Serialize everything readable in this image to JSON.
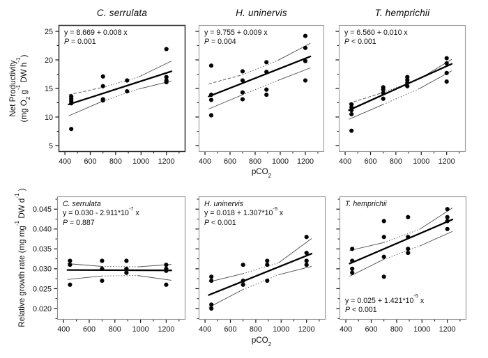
{
  "figure": {
    "y_axis_top_line1": "Net Productivity",
    "y_axis_top_line2": "(mg O~2~ g^-1^ DW h^-1^)",
    "y_axis_bottom": "Relative growth rate (mg mg^-1^  DW d^-1^ )",
    "x_axis_label": "pCO~2~"
  },
  "chart_data": [
    {
      "type": "scatter",
      "title": "C. serrulata",
      "species": "C. serrulata",
      "row": "net-productivity",
      "xlim": [
        350,
        1350
      ],
      "ylim": [
        3.9,
        26.1
      ],
      "x_tick_values": [
        400,
        600,
        800,
        1000,
        1200
      ],
      "x_tick_labels": [
        "400",
        "600",
        "800",
        "1000",
        "1200"
      ],
      "x_minor_ticks": [
        500,
        700,
        900,
        1100,
        1300
      ],
      "y_tick_values": [
        5,
        10,
        15,
        20,
        25
      ],
      "y_tick_labels": [
        "5",
        "10",
        "15",
        "20",
        "25"
      ],
      "y_minor_ticks": [
        7.5,
        12.5,
        17.5,
        22.5
      ],
      "points": [
        [
          450,
          13.6
        ],
        [
          450,
          13.2
        ],
        [
          450,
          12.8
        ],
        [
          450,
          12.4
        ],
        [
          450,
          7.9
        ],
        [
          700,
          17.1
        ],
        [
          700,
          15.4
        ],
        [
          700,
          13.1
        ],
        [
          700,
          12.9
        ],
        [
          890,
          16.4
        ],
        [
          890,
          14.5
        ],
        [
          1200,
          21.9
        ],
        [
          1200,
          17.0
        ],
        [
          1200,
          16.4
        ],
        [
          1200,
          16.1
        ]
      ],
      "fit_line": [
        [
          430,
          12.2
        ],
        [
          1240,
          18.0
        ]
      ],
      "ci_upper": [
        [
          430,
          13.9
        ],
        [
          700,
          15.2
        ],
        [
          980,
          17.0
        ],
        [
          1240,
          19.8
        ]
      ],
      "ci_lower": [
        [
          430,
          10.2
        ],
        [
          700,
          12.8
        ],
        [
          980,
          14.9
        ],
        [
          1240,
          16.3
        ]
      ],
      "ci_upper_styles": [
        "dashed",
        "dotted",
        "solid"
      ],
      "ci_lower_styles": [
        "solid",
        "dotted",
        "solid"
      ],
      "annotations": [
        {
          "pos": "top-left",
          "lines": [
            {
              "type": "equation",
              "text": "y = 8.669 + 0.008 x"
            },
            {
              "type": "pvalue",
              "text": "P = 0.001"
            }
          ]
        }
      ]
    },
    {
      "type": "scatter",
      "title": "H. uninervis",
      "species": "H. uninervis",
      "row": "net-productivity",
      "xlim": [
        350,
        1350
      ],
      "ylim": [
        3.9,
        26.1
      ],
      "x_tick_values": [
        400,
        600,
        800,
        1000,
        1200
      ],
      "x_tick_labels": [
        "400",
        "600",
        "800",
        "1000",
        "1200"
      ],
      "x_minor_ticks": [
        500,
        700,
        900,
        1100,
        1300
      ],
      "y_tick_values": [
        5,
        10,
        15,
        20,
        25
      ],
      "y_tick_labels": null,
      "y_minor_ticks": [
        7.5,
        12.5,
        17.5,
        22.5
      ],
      "points": [
        [
          450,
          19.0
        ],
        [
          450,
          13.9
        ],
        [
          450,
          13.0
        ],
        [
          450,
          10.3
        ],
        [
          700,
          18.0
        ],
        [
          700,
          16.4
        ],
        [
          700,
          14.3
        ],
        [
          700,
          13.1
        ],
        [
          890,
          19.6
        ],
        [
          890,
          17.9
        ],
        [
          890,
          14.8
        ],
        [
          890,
          13.9
        ],
        [
          1200,
          24.2
        ],
        [
          1200,
          22.1
        ],
        [
          1200,
          19.8
        ],
        [
          1200,
          16.4
        ]
      ],
      "fit_line": [
        [
          430,
          13.6
        ],
        [
          1240,
          20.6
        ]
      ],
      "ci_upper": [
        [
          430,
          15.8
        ],
        [
          700,
          17.4
        ],
        [
          980,
          19.9
        ],
        [
          1240,
          22.9
        ]
      ],
      "ci_lower": [
        [
          430,
          11.4
        ],
        [
          700,
          13.9
        ],
        [
          980,
          16.4
        ],
        [
          1240,
          18.6
        ]
      ],
      "ci_upper_styles": [
        "dashed",
        "dotted",
        "solid"
      ],
      "ci_lower_styles": [
        "solid",
        "dotted",
        "solid"
      ],
      "annotations": [
        {
          "pos": "top-left",
          "lines": [
            {
              "type": "equation",
              "text": "y = 9.755 + 0.009 x"
            },
            {
              "type": "pvalue",
              "text": "P = 0.004"
            }
          ]
        }
      ]
    },
    {
      "type": "scatter",
      "title": "T. hemprichii",
      "species": "T. hemprichii",
      "row": "net-productivity",
      "xlim": [
        350,
        1350
      ],
      "ylim": [
        3.9,
        26.1
      ],
      "x_tick_values": [
        400,
        600,
        800,
        1000,
        1200
      ],
      "x_tick_labels": [
        "400",
        "600",
        "800",
        "1000",
        "1200"
      ],
      "x_minor_ticks": [
        500,
        700,
        900,
        1100,
        1300
      ],
      "y_tick_values": [
        5,
        10,
        15,
        20,
        25
      ],
      "y_tick_labels": null,
      "y_minor_ticks": [
        7.5,
        12.5,
        17.5,
        22.5
      ],
      "points": [
        [
          450,
          12.2
        ],
        [
          450,
          11.7
        ],
        [
          450,
          11.2
        ],
        [
          450,
          10.5
        ],
        [
          450,
          7.6
        ],
        [
          700,
          15.2
        ],
        [
          700,
          14.8
        ],
        [
          700,
          14.2
        ],
        [
          700,
          13.2
        ],
        [
          890,
          17.0
        ],
        [
          890,
          16.5
        ],
        [
          890,
          16.0
        ],
        [
          890,
          15.4
        ],
        [
          1200,
          20.3
        ],
        [
          1200,
          19.4
        ],
        [
          1200,
          17.7
        ],
        [
          1200,
          16.2
        ]
      ],
      "fit_line": [
        [
          430,
          11.2
        ],
        [
          1240,
          19.3
        ]
      ],
      "ci_upper": [
        [
          430,
          12.4
        ],
        [
          700,
          14.3
        ],
        [
          980,
          16.6
        ],
        [
          1240,
          20.1
        ]
      ],
      "ci_lower": [
        [
          430,
          9.6
        ],
        [
          700,
          12.2
        ],
        [
          980,
          14.9
        ],
        [
          1240,
          18.1
        ]
      ],
      "ci_upper_styles": [
        "dashed",
        "dotted",
        "solid"
      ],
      "ci_lower_styles": [
        "solid",
        "dotted",
        "solid"
      ],
      "annotations": [
        {
          "pos": "top-left",
          "lines": [
            {
              "type": "equation",
              "text": "y = 6.560 + 0.010 x"
            },
            {
              "type": "pvalue",
              "text": "P < 0.001"
            }
          ]
        }
      ]
    },
    {
      "type": "scatter",
      "title": "",
      "species": "C. serrulata",
      "row": "relative-growth-rate",
      "xlim": [
        350,
        1350
      ],
      "ylim": [
        0.0172,
        0.0482
      ],
      "x_tick_values": [
        400,
        600,
        800,
        1000,
        1200
      ],
      "x_tick_labels": [
        "400",
        "600",
        "800",
        "1000",
        "1200"
      ],
      "x_minor_ticks": [
        500,
        700,
        900,
        1100,
        1300
      ],
      "y_tick_values": [
        0.02,
        0.025,
        0.03,
        0.035,
        0.04,
        0.045
      ],
      "y_tick_labels": [
        "0.020",
        "0.025",
        "0.030",
        "0.035",
        "0.040",
        "0.045"
      ],
      "y_minor_ticks": [
        0.0175,
        0.0225,
        0.0275,
        0.0325,
        0.0375,
        0.0425,
        0.0475
      ],
      "points": [
        [
          450,
          0.032
        ],
        [
          450,
          0.031
        ],
        [
          450,
          0.026
        ],
        [
          700,
          0.032
        ],
        [
          700,
          0.03
        ],
        [
          700,
          0.027
        ],
        [
          890,
          0.032
        ],
        [
          890,
          0.03
        ],
        [
          890,
          0.029
        ],
        [
          1200,
          0.031
        ],
        [
          1200,
          0.03
        ],
        [
          1200,
          0.0295
        ],
        [
          1200,
          0.026
        ]
      ],
      "fit_line": [
        [
          430,
          0.0297
        ],
        [
          1240,
          0.0296
        ]
      ],
      "ci_upper": [
        [
          430,
          0.0313
        ],
        [
          700,
          0.0306
        ],
        [
          980,
          0.0305
        ],
        [
          1240,
          0.0311
        ]
      ],
      "ci_lower": [
        [
          430,
          0.0273
        ],
        [
          700,
          0.0282
        ],
        [
          980,
          0.0283
        ],
        [
          1240,
          0.0271
        ]
      ],
      "ci_upper_styles": [
        "solid",
        "dotted",
        "solid"
      ],
      "ci_lower_styles": [
        "solid",
        "dotted",
        "solid"
      ],
      "annotations": [
        {
          "pos": "top-left",
          "lines": [
            {
              "type": "species",
              "text": "C. serrulata"
            },
            {
              "type": "equation",
              "text": "y = 0.030 - 2.911*10^-7^ x"
            },
            {
              "type": "pvalue",
              "text": "P = 0.887"
            }
          ]
        }
      ]
    },
    {
      "type": "scatter",
      "title": "",
      "species": "H. uninervis",
      "row": "relative-growth-rate",
      "xlim": [
        350,
        1350
      ],
      "ylim": [
        0.0172,
        0.0482
      ],
      "x_tick_values": [
        400,
        600,
        800,
        1000,
        1200
      ],
      "x_tick_labels": [
        "400",
        "600",
        "800",
        "1000",
        "1200"
      ],
      "x_minor_ticks": [
        500,
        700,
        900,
        1100,
        1300
      ],
      "y_tick_values": [
        0.02,
        0.025,
        0.03,
        0.035,
        0.04,
        0.045
      ],
      "y_tick_labels": null,
      "y_minor_ticks": [
        0.0175,
        0.0225,
        0.0275,
        0.0325,
        0.0375,
        0.0425,
        0.0475
      ],
      "points": [
        [
          450,
          0.028
        ],
        [
          450,
          0.027
        ],
        [
          450,
          0.021
        ],
        [
          450,
          0.02
        ],
        [
          700,
          0.031
        ],
        [
          700,
          0.027
        ],
        [
          700,
          0.026
        ],
        [
          890,
          0.032
        ],
        [
          890,
          0.031
        ],
        [
          890,
          0.027
        ],
        [
          1200,
          0.038
        ],
        [
          1200,
          0.034
        ],
        [
          1200,
          0.032
        ],
        [
          1200,
          0.031
        ]
      ],
      "fit_line": [
        [
          430,
          0.0234
        ],
        [
          1240,
          0.0338
        ]
      ],
      "ci_upper": [
        [
          430,
          0.0267
        ],
        [
          700,
          0.0288
        ],
        [
          980,
          0.0315
        ],
        [
          1240,
          0.0376
        ]
      ],
      "ci_lower": [
        [
          430,
          0.0203
        ],
        [
          700,
          0.0248
        ],
        [
          980,
          0.0285
        ],
        [
          1240,
          0.0306
        ]
      ],
      "ci_upper_styles": [
        "solid",
        "dotted",
        "solid"
      ],
      "ci_lower_styles": [
        "solid",
        "dotted",
        "solid"
      ],
      "annotations": [
        {
          "pos": "top-left",
          "lines": [
            {
              "type": "species",
              "text": "H. uninervis"
            },
            {
              "type": "equation",
              "text": "y = 0.018 + 1.307*10^-5^ x"
            },
            {
              "type": "pvalue",
              "text": "P < 0.001"
            }
          ]
        }
      ]
    },
    {
      "type": "scatter",
      "title": "",
      "species": "T. hemprichii",
      "row": "relative-growth-rate",
      "xlim": [
        350,
        1350
      ],
      "ylim": [
        0.0172,
        0.0482
      ],
      "x_tick_values": [
        400,
        600,
        800,
        1000,
        1200
      ],
      "x_tick_labels": [
        "400",
        "600",
        "800",
        "1000",
        "1200"
      ],
      "x_minor_ticks": [
        500,
        700,
        900,
        1100,
        1300
      ],
      "y_tick_values": [
        0.02,
        0.025,
        0.03,
        0.035,
        0.04,
        0.045
      ],
      "y_tick_labels": null,
      "y_minor_ticks": [
        0.0175,
        0.0225,
        0.0275,
        0.0325,
        0.0375,
        0.0425,
        0.0475
      ],
      "points": [
        [
          450,
          0.035
        ],
        [
          450,
          0.032
        ],
        [
          450,
          0.03
        ],
        [
          450,
          0.029
        ],
        [
          700,
          0.042
        ],
        [
          700,
          0.038
        ],
        [
          700,
          0.033
        ],
        [
          700,
          0.028
        ],
        [
          890,
          0.043
        ],
        [
          890,
          0.038
        ],
        [
          890,
          0.035
        ],
        [
          890,
          0.034
        ],
        [
          1200,
          0.045
        ],
        [
          1200,
          0.043
        ],
        [
          1200,
          0.042
        ],
        [
          1200,
          0.04
        ]
      ],
      "fit_line": [
        [
          430,
          0.0313
        ],
        [
          1240,
          0.0424
        ]
      ],
      "ci_upper": [
        [
          430,
          0.0346
        ],
        [
          700,
          0.0366
        ],
        [
          980,
          0.0399
        ],
        [
          1240,
          0.0453
        ]
      ],
      "ci_lower": [
        [
          430,
          0.0281
        ],
        [
          700,
          0.0324
        ],
        [
          980,
          0.0357
        ],
        [
          1240,
          0.0394
        ]
      ],
      "ci_upper_styles": [
        "solid",
        "dotted",
        "solid"
      ],
      "ci_lower_styles": [
        "solid",
        "dotted",
        "solid"
      ],
      "annotations": [
        {
          "pos": "top-left",
          "lines": [
            {
              "type": "species",
              "text": "T. hemprichii"
            }
          ]
        },
        {
          "pos": "bottom-left",
          "lines": [
            {
              "type": "equation",
              "text": "y = 0.025 + 1.421*10^-5^ x"
            },
            {
              "type": "pvalue",
              "text": "P < 0.001"
            }
          ]
        }
      ]
    }
  ]
}
